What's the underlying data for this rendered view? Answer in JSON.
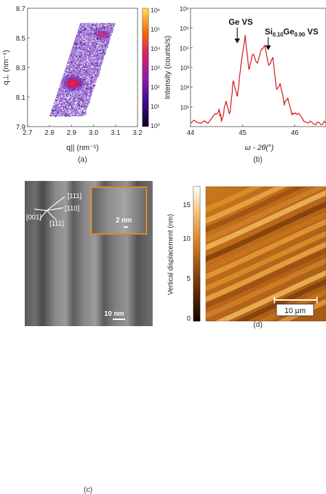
{
  "panel_a": {
    "caption": "(a)",
    "ylabel": "q⊥ (nm⁻¹)",
    "xlabel": "q|| (nm⁻¹)",
    "x_ticks": [
      "2.7",
      "2.8",
      "2.9",
      "3.0",
      "3.1",
      "3.2"
    ],
    "y_ticks": [
      "8.7",
      "8.5",
      "8.3",
      "8.1",
      "7.9"
    ],
    "colorbar_ticks": [
      "10⁶",
      "10⁵",
      "10⁴",
      "10³",
      "10²",
      "10¹",
      "10⁰"
    ]
  },
  "panel_b": {
    "caption": "(b)",
    "ylabel": "Intensity (counts/s)",
    "xlabel": "ω - 2θ(°)",
    "x_ticks": [
      "44",
      "45",
      "46"
    ],
    "y_ticks": [
      "10⁶",
      "10⁵",
      "10⁴",
      "10³",
      "10²",
      "10¹"
    ],
    "annotation_ge": "Ge VS",
    "annotation_sige_main": "Si",
    "annotation_sige_sub1": "0.10",
    "annotation_sige_mid": "Ge",
    "annotation_sige_sub2": "0.90",
    "annotation_sige_tail": " VS",
    "line_color": "#d42020"
  },
  "panel_c": {
    "caption": "(c)",
    "dir_111": "[111]",
    "dir_110": "[110]",
    "dir_001": "[001]",
    "dir_111b": "[111]",
    "inset_scale": "2 nm",
    "scale": "10 nm",
    "inset_border_color": "#e08a1a"
  },
  "panel_d": {
    "caption": "(d)",
    "ylabel": "Vertical displacement (nm)",
    "colorbar_ticks": [
      "15",
      "10",
      "5",
      "0"
    ],
    "scale": "10 µm"
  },
  "chart_data": [
    {
      "type": "heatmap",
      "panel": "a",
      "xlabel": "q|| (nm⁻¹)",
      "ylabel": "q⊥ (nm⁻¹)",
      "xlim": [
        2.7,
        3.2
      ],
      "ylim": [
        7.9,
        8.7
      ],
      "colorbar_range": [
        1,
        1000000
      ],
      "colorbar_scale": "log",
      "peaks": [
        {
          "qx": 2.88,
          "qz": 8.19
        },
        {
          "qx": 3.01,
          "qz": 8.51
        }
      ]
    },
    {
      "type": "line",
      "panel": "b",
      "xlabel": "ω - 2θ(°)",
      "ylabel": "Intensity (counts/s)",
      "xlim": [
        44,
        46.6
      ],
      "ylim": [
        1,
        1000000
      ],
      "yscale": "log",
      "x": [
        44.0,
        44.4,
        44.55,
        44.6,
        44.68,
        44.75,
        44.82,
        44.9,
        44.97,
        45.05,
        45.12,
        45.2,
        45.28,
        45.35,
        45.43,
        45.5,
        45.58,
        45.65,
        45.72,
        45.8,
        45.87,
        45.95,
        46.05,
        46.2,
        46.4,
        46.6
      ],
      "y": [
        1.6,
        2,
        6,
        2,
        20,
        4,
        200,
        30,
        1500,
        40000,
        800,
        5000,
        1500,
        7000,
        12000,
        1200,
        3000,
        80,
        150,
        15,
        25,
        4,
        5,
        2,
        1.5,
        1.5
      ]
    }
  ]
}
